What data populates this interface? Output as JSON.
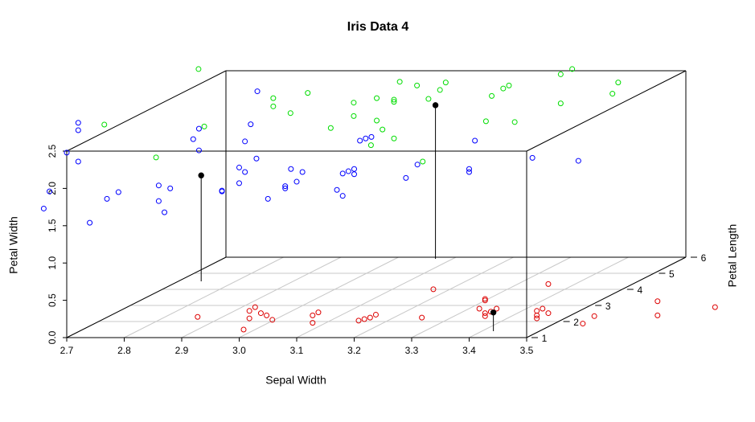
{
  "chart_data": {
    "type": "scatter3d",
    "title": "Iris Data 4",
    "x_label": "Sepal Width",
    "y_label": "Petal Length",
    "z_label": "Petal Width",
    "xlim": [
      2.7,
      3.5
    ],
    "xticks": [
      2.7,
      2.8,
      2.9,
      {
        "value": 3,
        "label": "3.0"
      },
      3.1,
      3.2,
      3.3,
      3.4,
      3.5
    ],
    "ylim": [
      1,
      6
    ],
    "yticks": [
      1,
      2,
      3,
      4,
      5,
      6
    ],
    "zlim": [
      0,
      2.5
    ],
    "zticks": [
      {
        "value": 0,
        "label": "0.0"
      },
      0.5,
      {
        "value": 1,
        "label": "1.0"
      },
      1.5,
      {
        "value": 2,
        "label": "2.0"
      },
      2.5
    ],
    "grid": true,
    "series": [
      {
        "color": "#0000ff",
        "filled": false,
        "drop": false,
        "x": [
          2.7,
          2.72,
          2.72,
          2.72,
          2.74,
          2.67,
          2.66,
          2.77,
          2.79,
          2.86,
          2.86,
          2.87,
          2.88,
          2.92,
          2.93,
          2.93,
          2.97,
          2.97,
          3.0,
          3.0,
          3.01,
          3.01,
          3.02,
          3.03,
          2.81,
          3.05,
          3.08,
          3.08,
          3.09,
          3.1,
          3.11,
          3.17,
          3.18,
          3.18,
          3.19,
          3.2,
          3.2,
          3.21,
          3.22,
          3.23,
          3.29,
          3.31,
          3.4,
          3.4,
          3.41,
          3.51,
          3.59
        ],
        "y": [
          1,
          1,
          1,
          1,
          1,
          1,
          1,
          1,
          1,
          1,
          1,
          1,
          1,
          1,
          1,
          1,
          1,
          1,
          1,
          1,
          1,
          1,
          1,
          1,
          5,
          1,
          1,
          1,
          1,
          1,
          1,
          1,
          1,
          1,
          1,
          1,
          1,
          1,
          1,
          1,
          1,
          1,
          1,
          1,
          1,
          1,
          1
        ],
        "z": [
          2.48,
          2.36,
          2.88,
          2.78,
          1.54,
          1.96,
          1.73,
          1.86,
          1.95,
          2.04,
          1.83,
          1.68,
          2.0,
          2.66,
          2.8,
          2.51,
          1.96,
          1.97,
          2.28,
          2.07,
          2.63,
          2.22,
          2.86,
          2.4,
          2.44,
          1.86,
          2.0,
          2.03,
          2.26,
          2.09,
          2.22,
          1.98,
          1.9,
          2.2,
          2.23,
          2.26,
          2.19,
          2.64,
          2.67,
          2.69,
          2.14,
          2.32,
          2.26,
          2.22,
          2.64,
          2.41,
          2.37
        ]
      },
      {
        "color": "#00dd00",
        "filled": false,
        "drop": false,
        "x": [
          2.81,
          2.81,
          2.84,
          2.87,
          2.91,
          2.95,
          2.95,
          2.98,
          2.99,
          2.99,
          3.0,
          3.02,
          3.02,
          3.02,
          3.03,
          3.06,
          3.07,
          3.08,
          3.1,
          3.11,
          3.18,
          3.19,
          3.21,
          3.22,
          3.23,
          3.31,
          3.31,
          3.33,
          3.4,
          3.41,
          2.68,
          2.69,
          2.8,
          2.71
        ],
        "y": [
          5.5,
          5.5,
          5.5,
          5.5,
          5.5,
          5.5,
          5.5,
          5.5,
          5.5,
          5.5,
          5.5,
          5.5,
          5.5,
          5.5,
          5.5,
          5.5,
          5.5,
          5.5,
          5.5,
          5.5,
          5.5,
          5.5,
          5.5,
          5.5,
          5.5,
          5.5,
          5.5,
          5.5,
          5.5,
          5.5,
          5.5,
          5.5,
          2,
          2
        ],
        "z": [
          2.24,
          2.13,
          2.04,
          2.31,
          1.84,
          2.0,
          2.18,
          1.61,
          2.24,
          1.94,
          1.82,
          1.7,
          2.22,
          2.19,
          2.46,
          2.41,
          1.39,
          2.23,
          2.35,
          2.45,
          1.93,
          2.27,
          2.37,
          2.41,
          1.92,
          2.56,
          2.17,
          2.63,
          2.3,
          2.45,
          2.63,
          1.86,
          2.2,
          2.64
        ]
      },
      {
        "color": "#dd0000",
        "filled": false,
        "drop": false,
        "x": [
          2.9,
          2.98,
          2.99,
          2.99,
          3.0,
          3.01,
          3.02,
          3.03,
          3.1,
          3.11,
          3.1,
          3.18,
          3.19,
          3.2,
          3.21,
          3.29,
          3.31,
          3.4,
          3.4,
          3.39,
          3.4,
          3.4,
          3.41,
          3.42,
          3.49,
          3.49,
          3.49,
          3.5,
          3.51,
          3.51,
          3.57,
          3.59,
          3.7,
          3.7,
          3.8
        ],
        "y": [
          1.5,
          1.5,
          1.5,
          1.5,
          1.5,
          1.5,
          1.5,
          1.5,
          1.5,
          1.5,
          1.5,
          1.5,
          1.5,
          1.5,
          1.5,
          1.5,
          1.5,
          1.5,
          1.5,
          1.5,
          1.5,
          1.5,
          1.5,
          1.5,
          1.5,
          1.5,
          1.5,
          1.5,
          1.5,
          1.5,
          1.5,
          1.5,
          1.5,
          1.5,
          1.5
        ],
        "z": [
          0.17,
          0.0,
          0.15,
          0.25,
          0.3,
          0.22,
          0.19,
          0.13,
          0.19,
          0.23,
          0.09,
          0.12,
          0.14,
          0.16,
          0.2,
          0.16,
          0.54,
          0.39,
          0.41,
          0.28,
          0.18,
          0.22,
          0.24,
          0.28,
          0.25,
          0.19,
          0.15,
          0.28,
          0.22,
          0.61,
          0.08,
          0.18,
          0.38,
          0.19,
          0.3
        ]
      },
      {
        "color": "#000000",
        "filled": true,
        "drop": true,
        "x": [
          2.74,
          3.07,
          3.42
        ],
        "y": [
          4.5,
          5.9,
          1.4
        ],
        "z": [
          1.42,
          2.06,
          0.25
        ]
      }
    ]
  }
}
